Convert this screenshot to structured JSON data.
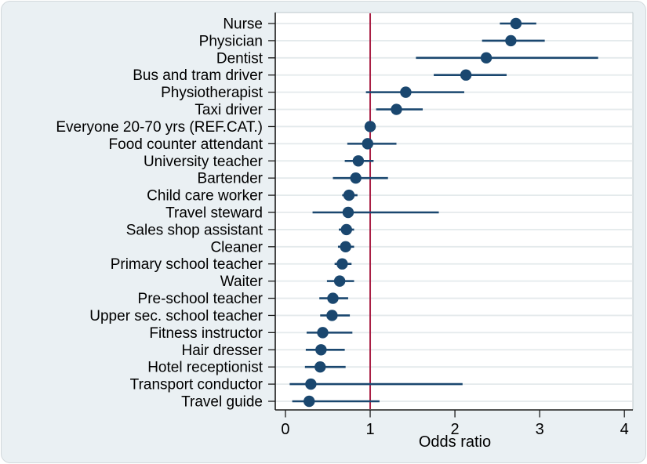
{
  "chart_data": {
    "type": "scatter",
    "variant": "forest-plot",
    "xlabel": "Odds ratio",
    "x_ticks": [
      0,
      1,
      2,
      3,
      4
    ],
    "xlim": [
      -0.12,
      4.1
    ],
    "ref_line_x": 1,
    "grid": true,
    "legend": "none",
    "categories": [
      "Nurse",
      "Physician",
      "Dentist",
      "Bus and tram driver",
      "Physiotherapist",
      "Taxi driver",
      "Everyone 20-70 yrs (REF.CAT.)",
      "Food counter attendant",
      "University teacher",
      "Bartender",
      "Child care worker",
      "Travel steward",
      "Sales shop assistant",
      "Cleaner",
      "Primary school teacher",
      "Waiter",
      "Pre-school teacher",
      "Upper sec. school teacher",
      "Fitness instructor",
      "Hair dresser",
      "Hotel receptionist",
      "Transport conductor",
      "Travel guide"
    ],
    "points": [
      {
        "label": "Nurse",
        "or": 2.72,
        "ci_low": 2.53,
        "ci_high": 2.96
      },
      {
        "label": "Physician",
        "or": 2.66,
        "ci_low": 2.32,
        "ci_high": 3.06
      },
      {
        "label": "Dentist",
        "or": 2.37,
        "ci_low": 1.54,
        "ci_high": 3.69
      },
      {
        "label": "Bus and tram driver",
        "or": 2.13,
        "ci_low": 1.75,
        "ci_high": 2.61
      },
      {
        "label": "Physiotherapist",
        "or": 1.42,
        "ci_low": 0.95,
        "ci_high": 2.11
      },
      {
        "label": "Taxi driver",
        "or": 1.31,
        "ci_low": 1.07,
        "ci_high": 1.62
      },
      {
        "label": "Everyone 20-70 yrs (REF.CAT.)",
        "or": 1.0,
        "ci_low": null,
        "ci_high": null
      },
      {
        "label": "Food counter attendant",
        "or": 0.97,
        "ci_low": 0.73,
        "ci_high": 1.31
      },
      {
        "label": "University teacher",
        "or": 0.86,
        "ci_low": 0.7,
        "ci_high": 1.04
      },
      {
        "label": "Bartender",
        "or": 0.83,
        "ci_low": 0.56,
        "ci_high": 1.21
      },
      {
        "label": "Child care worker",
        "or": 0.75,
        "ci_low": 0.67,
        "ci_high": 0.85
      },
      {
        "label": "Travel steward",
        "or": 0.74,
        "ci_low": 0.32,
        "ci_high": 1.81
      },
      {
        "label": "Sales shop assistant",
        "or": 0.72,
        "ci_low": 0.63,
        "ci_high": 0.81
      },
      {
        "label": "Cleaner",
        "or": 0.71,
        "ci_low": 0.62,
        "ci_high": 0.81
      },
      {
        "label": "Primary school teacher",
        "or": 0.67,
        "ci_low": 0.58,
        "ci_high": 0.78
      },
      {
        "label": "Waiter",
        "or": 0.64,
        "ci_low": 0.49,
        "ci_high": 0.81
      },
      {
        "label": "Pre-school teacher",
        "or": 0.56,
        "ci_low": 0.4,
        "ci_high": 0.74
      },
      {
        "label": "Upper sec. school teacher",
        "or": 0.55,
        "ci_low": 0.41,
        "ci_high": 0.76
      },
      {
        "label": "Fitness instructor",
        "or": 0.44,
        "ci_low": 0.25,
        "ci_high": 0.79
      },
      {
        "label": "Hair dresser",
        "or": 0.42,
        "ci_low": 0.24,
        "ci_high": 0.7
      },
      {
        "label": "Hotel receptionist",
        "or": 0.41,
        "ci_low": 0.23,
        "ci_high": 0.71
      },
      {
        "label": "Transport conductor",
        "or": 0.3,
        "ci_low": 0.05,
        "ci_high": 2.09
      },
      {
        "label": "Travel guide",
        "or": 0.28,
        "ci_low": 0.08,
        "ci_high": 1.11
      }
    ],
    "colors": {
      "marker": "#1a476f",
      "ci_line": "#1a476f",
      "ref_line": "#a91e44",
      "plot_bg": "#ffffff",
      "outer_bg": "#eaf0f3",
      "grid": "#e4eaec",
      "axis": "#1a1a1a",
      "frame": "#bcc7cb"
    }
  }
}
